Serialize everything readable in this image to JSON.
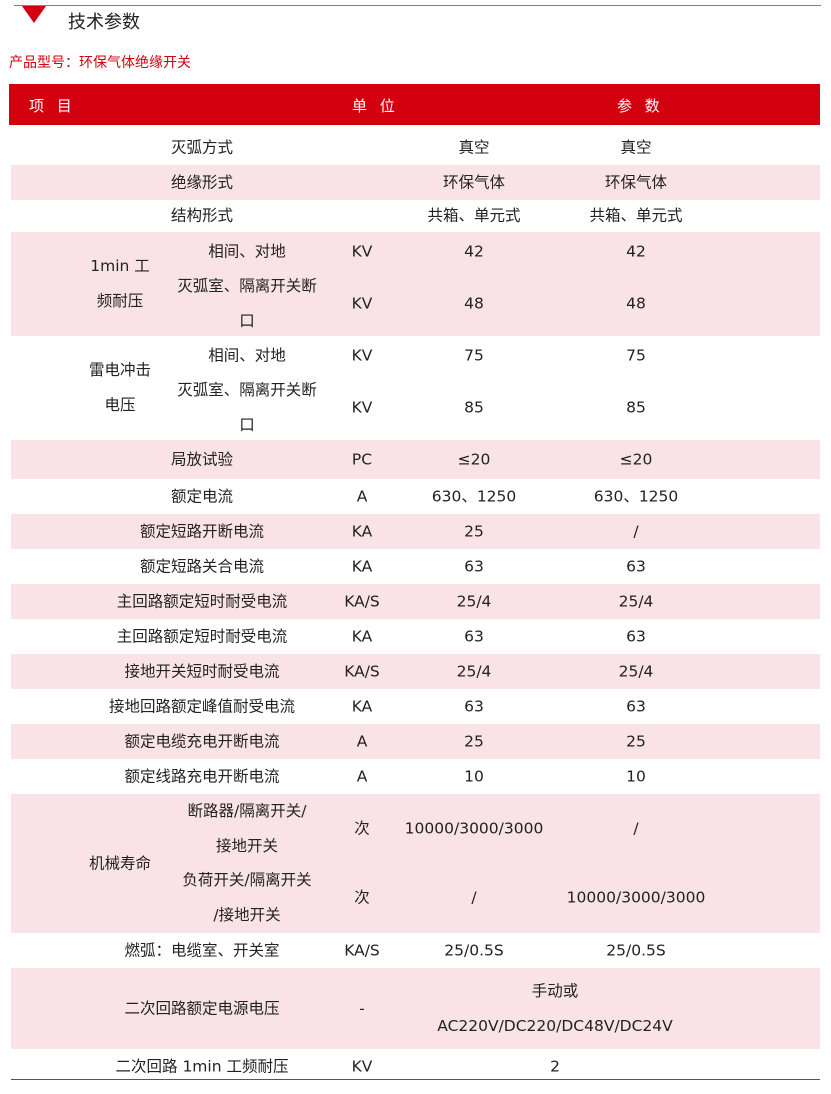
{
  "section_title": "技术参数",
  "product_model_label": "产品型号：",
  "product_model_value": "环保气体绝缘开关",
  "colors": {
    "accent": "#d3000f",
    "row_alt": "#f9e3e7"
  },
  "table": {
    "headers": [
      "项 目",
      "单 位",
      "参 数"
    ],
    "rows": [
      {
        "item": "灭弧方式",
        "unit": "",
        "p1": "真空",
        "p2": "真空"
      },
      {
        "item": "绝缘形式",
        "unit": "",
        "p1": "环保气体",
        "p2": "环保气体"
      },
      {
        "item": "结构形式",
        "unit": "",
        "p1": "共箱、单元式",
        "p2": "共箱、单元式"
      },
      {
        "group": [
          "1min 工",
          "频耐压"
        ],
        "subs": [
          {
            "item": [
              "相间、对地"
            ],
            "unit": "KV",
            "p1": "42",
            "p2": "42"
          },
          {
            "item": [
              "灭弧室、隔离开关断",
              "口"
            ],
            "unit": "KV",
            "p1": "48",
            "p2": "48"
          }
        ]
      },
      {
        "group": [
          "雷电冲击",
          "电压"
        ],
        "subs": [
          {
            "item": [
              "相间、对地"
            ],
            "unit": "KV",
            "p1": "75",
            "p2": "75"
          },
          {
            "item": [
              "灭弧室、隔离开关断",
              "口"
            ],
            "unit": "KV",
            "p1": "85",
            "p2": "85"
          }
        ]
      },
      {
        "item": "局放试验",
        "unit": "PC",
        "p1": "≤20",
        "p2": "≤20"
      },
      {
        "item": "额定电流",
        "unit": "A",
        "p1": "630、1250",
        "p2": "630、1250"
      },
      {
        "item": "额定短路开断电流",
        "unit": "KA",
        "p1": "25",
        "p2": "/"
      },
      {
        "item": "额定短路关合电流",
        "unit": "KA",
        "p1": "63",
        "p2": "63"
      },
      {
        "item": "主回路额定短时耐受电流",
        "unit": "KA/S",
        "p1": "25/4",
        "p2": "25/4"
      },
      {
        "item": "主回路额定短时耐受电流",
        "unit": "KA",
        "p1": "63",
        "p2": "63"
      },
      {
        "item": "接地开关短时耐受电流",
        "unit": "KA/S",
        "p1": "25/4",
        "p2": "25/4"
      },
      {
        "item": "接地回路额定峰值耐受电流",
        "unit": "KA",
        "p1": "63",
        "p2": "63"
      },
      {
        "item": "额定电缆充电开断电流",
        "unit": "A",
        "p1": "25",
        "p2": "25"
      },
      {
        "item": "额定线路充电开断电流",
        "unit": "A",
        "p1": "10",
        "p2": "10"
      },
      {
        "group": [
          "机械寿命"
        ],
        "subs": [
          {
            "item": [
              "断路器/隔离开关/",
              "接地开关"
            ],
            "unit": "次",
            "p1": "10000/3000/3000",
            "p2": "/"
          },
          {
            "item": [
              "负荷开关/隔离开关",
              "/接地开关"
            ],
            "unit": "次",
            "p1": "/",
            "p2": "10000/3000/3000"
          }
        ]
      },
      {
        "item": "燃弧：电缆室、开关室",
        "unit": "KA/S",
        "p1": "25/0.5S",
        "p2": "25/0.5S"
      },
      {
        "item": "二次回路额定电源电压",
        "unit": "-",
        "merged": [
          "手动或",
          "AC220V/DC220/DC48V/DC24V"
        ]
      },
      {
        "item": "二次回路 1min 工频耐压",
        "unit": "KV",
        "merged": [
          "2"
        ]
      }
    ]
  }
}
